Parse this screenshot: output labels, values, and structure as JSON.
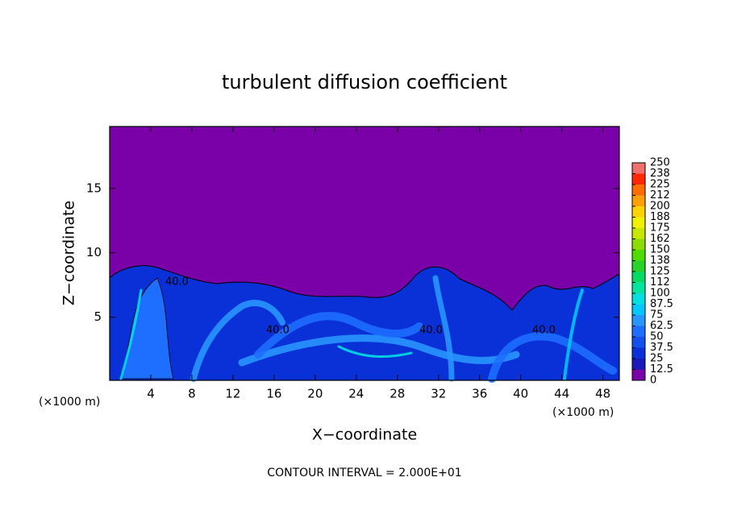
{
  "chart_data": {
    "type": "contour",
    "title": "turbulent diffusion coefficient",
    "x_label": "X−coordinate",
    "y_label": "Z−coordinate",
    "unit_labels": [
      "(×1000 m)",
      "(×1000 m)"
    ],
    "footer": "CONTOUR INTERVAL = 2.000E+01",
    "contour_labels": [
      "40.0",
      "40.0",
      "40.0",
      "40.0"
    ],
    "xlim": [
      0,
      49.6
    ],
    "xticks": [
      4,
      8,
      12,
      16,
      20,
      24,
      28,
      32,
      36,
      40,
      44,
      48
    ],
    "ylim": [
      0.1,
      19.8
    ],
    "yticks": [
      5,
      10,
      15
    ],
    "colorbar_ticks": [
      0,
      12.5,
      25,
      37.5,
      50,
      62.5,
      75,
      87.5,
      100,
      112,
      125,
      138,
      150,
      162,
      175,
      188,
      200,
      212,
      225,
      238,
      250
    ],
    "colors": [
      "#7a00a8",
      "#1a1ab8",
      "#0a30d8",
      "#1450f0",
      "#1e6eff",
      "#2896ff",
      "#00c8ff",
      "#00e0e0",
      "#00e6a0",
      "#00dc64",
      "#28d228",
      "#50dc00",
      "#8cdc00",
      "#c8e600",
      "#f0f000",
      "#ffd200",
      "#ffa000",
      "#ff6e00",
      "#ff2800",
      "#f07070"
    ]
  }
}
